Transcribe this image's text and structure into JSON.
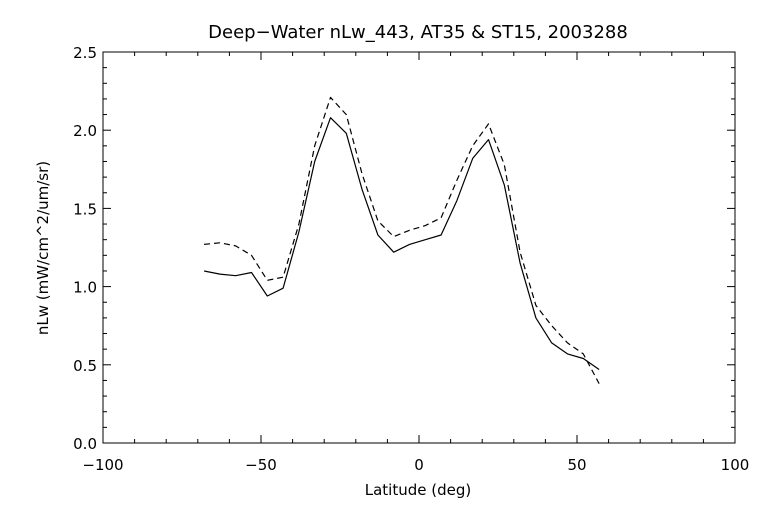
{
  "chart_data": {
    "type": "line",
    "title": "Deep−Water nLw_443, AT35 & ST15, 2003288",
    "xlabel": "Latitude (deg)",
    "ylabel": "nLw (mW/cm^2/um/sr)",
    "xlim": [
      -100,
      100
    ],
    "ylim": [
      0.0,
      2.5
    ],
    "x_ticks": [
      -100,
      -50,
      0,
      50,
      100
    ],
    "x_tick_labels": [
      "−100",
      "−50",
      "0",
      "50",
      "100"
    ],
    "y_ticks": [
      0.0,
      0.5,
      1.0,
      1.5,
      2.0,
      2.5
    ],
    "y_tick_labels": [
      "0.0",
      "0.5",
      "1.0",
      "1.5",
      "2.0",
      "2.5"
    ],
    "grid": false,
    "series": [
      {
        "style": "solid",
        "color": "#000000",
        "x": [
          -68,
          -63,
          -58,
          -53,
          -48,
          -43,
          -38,
          -33,
          -28,
          -23,
          -18,
          -13,
          -8,
          -3,
          2,
          7,
          12,
          17,
          22,
          27,
          32,
          37,
          42,
          47,
          52,
          57
        ],
        "y": [
          1.1,
          1.08,
          1.07,
          1.09,
          0.94,
          0.99,
          1.35,
          1.8,
          2.08,
          1.98,
          1.62,
          1.33,
          1.22,
          1.27,
          1.3,
          1.33,
          1.55,
          1.82,
          1.94,
          1.65,
          1.15,
          0.8,
          0.64,
          0.57,
          0.54,
          0.47
        ]
      },
      {
        "style": "dashed",
        "color": "#000000",
        "x": [
          -68,
          -63,
          -58,
          -53,
          -48,
          -43,
          -38,
          -33,
          -28,
          -23,
          -18,
          -13,
          -8,
          -3,
          2,
          7,
          12,
          17,
          22,
          27,
          32,
          37,
          42,
          47,
          52,
          57
        ],
        "y": [
          1.27,
          1.28,
          1.26,
          1.2,
          1.04,
          1.06,
          1.4,
          1.9,
          2.21,
          2.1,
          1.72,
          1.42,
          1.32,
          1.36,
          1.39,
          1.44,
          1.68,
          1.9,
          2.04,
          1.78,
          1.22,
          0.88,
          0.75,
          0.64,
          0.57,
          0.38
        ]
      }
    ]
  }
}
